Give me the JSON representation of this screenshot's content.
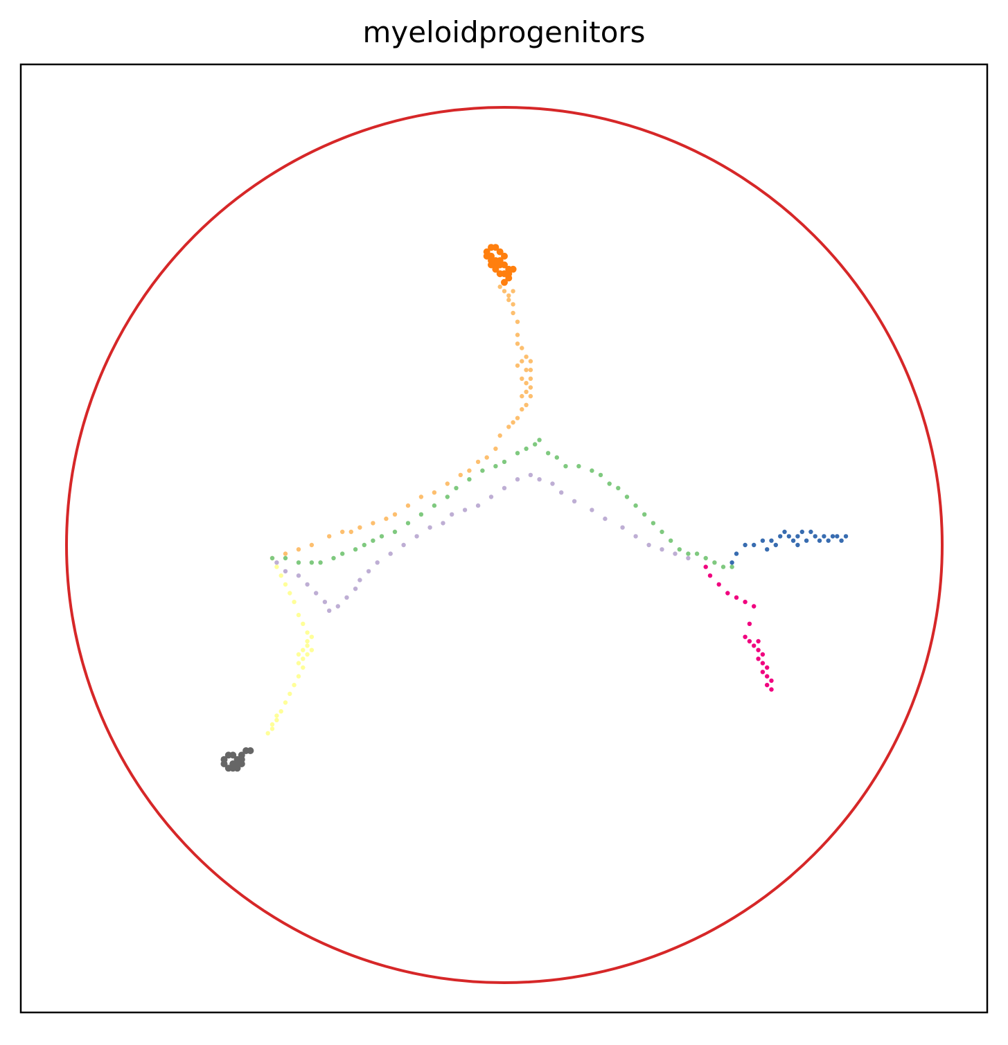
{
  "chart_data": {
    "type": "scatter",
    "title": "myeloidprogenitors",
    "xlabel": "",
    "ylabel": "",
    "xlim": [
      -1.1,
      1.1
    ],
    "ylim": [
      -1.1,
      1.1
    ],
    "grid": false,
    "legend": "none",
    "boundary_circle": {
      "center": [
        0,
        0
      ],
      "radius": 1.0,
      "color": "#d62728"
    },
    "series": [
      {
        "color": "#ff7f0e",
        "shape": "cluster",
        "center": [
          -0.02,
          0.66
        ],
        "points": [
          [
            -0.04,
            0.67
          ],
          [
            -0.03,
            0.68
          ],
          [
            -0.02,
            0.68
          ],
          [
            -0.01,
            0.67
          ],
          [
            -0.04,
            0.66
          ],
          [
            -0.03,
            0.66
          ],
          [
            -0.02,
            0.65
          ],
          [
            -0.01,
            0.65
          ],
          [
            0.0,
            0.64
          ],
          [
            0.01,
            0.63
          ],
          [
            -0.02,
            0.63
          ],
          [
            -0.01,
            0.62
          ],
          [
            0.0,
            0.62
          ],
          [
            0.01,
            0.61
          ],
          [
            -0.03,
            0.65
          ],
          [
            -0.02,
            0.64
          ],
          [
            0.0,
            0.66
          ],
          [
            -0.01,
            0.64
          ],
          [
            0.02,
            0.63
          ],
          [
            0.01,
            0.62
          ],
          [
            -0.03,
            0.64
          ],
          [
            0.0,
            0.6
          ]
        ]
      },
      {
        "color": "#fdbf6f",
        "shape": "path",
        "points": [
          [
            -0.01,
            0.59
          ],
          [
            0.0,
            0.58
          ],
          [
            0.01,
            0.57
          ],
          [
            0.02,
            0.58
          ],
          [
            0.01,
            0.56
          ],
          [
            0.02,
            0.55
          ],
          [
            0.02,
            0.53
          ],
          [
            0.03,
            0.51
          ],
          [
            0.03,
            0.48
          ],
          [
            0.03,
            0.46
          ],
          [
            0.04,
            0.45
          ],
          [
            0.05,
            0.43
          ],
          [
            0.04,
            0.42
          ],
          [
            0.06,
            0.42
          ],
          [
            0.03,
            0.41
          ],
          [
            0.05,
            0.4
          ],
          [
            0.06,
            0.4
          ],
          [
            0.04,
            0.38
          ],
          [
            0.06,
            0.38
          ],
          [
            0.05,
            0.37
          ],
          [
            0.05,
            0.35
          ],
          [
            0.06,
            0.36
          ],
          [
            0.04,
            0.34
          ],
          [
            0.06,
            0.34
          ],
          [
            0.05,
            0.32
          ],
          [
            0.04,
            0.31
          ],
          [
            0.03,
            0.29
          ],
          [
            0.02,
            0.28
          ],
          [
            0.01,
            0.27
          ],
          [
            -0.01,
            0.25
          ],
          [
            -0.02,
            0.22
          ],
          [
            -0.04,
            0.2
          ],
          [
            -0.06,
            0.19
          ],
          [
            -0.08,
            0.17
          ],
          [
            -0.1,
            0.16
          ],
          [
            -0.13,
            0.14
          ],
          [
            -0.16,
            0.12
          ],
          [
            -0.19,
            0.11
          ],
          [
            -0.22,
            0.09
          ],
          [
            -0.25,
            0.07
          ],
          [
            -0.27,
            0.06
          ],
          [
            -0.3,
            0.05
          ],
          [
            -0.33,
            0.04
          ],
          [
            -0.35,
            0.03
          ],
          [
            -0.37,
            0.03
          ],
          [
            -0.4,
            0.02
          ],
          [
            -0.44,
            0.0
          ],
          [
            -0.47,
            -0.01
          ],
          [
            -0.5,
            -0.02
          ],
          [
            -0.53,
            -0.03
          ]
        ]
      },
      {
        "color": "#7fc97f",
        "shape": "path",
        "points": [
          [
            -0.53,
            -0.03
          ],
          [
            -0.5,
            -0.03
          ],
          [
            -0.47,
            -0.04
          ],
          [
            -0.44,
            -0.04
          ],
          [
            -0.42,
            -0.04
          ],
          [
            -0.39,
            -0.03
          ],
          [
            -0.37,
            -0.02
          ],
          [
            -0.34,
            -0.01
          ],
          [
            -0.32,
            0.0
          ],
          [
            -0.3,
            0.01
          ],
          [
            -0.28,
            0.02
          ],
          [
            -0.25,
            0.03
          ],
          [
            -0.22,
            0.05
          ],
          [
            -0.19,
            0.07
          ],
          [
            -0.16,
            0.09
          ],
          [
            -0.13,
            0.11
          ],
          [
            -0.11,
            0.13
          ],
          [
            -0.08,
            0.15
          ],
          [
            -0.05,
            0.17
          ],
          [
            -0.02,
            0.18
          ],
          [
            0.0,
            0.19
          ],
          [
            0.03,
            0.21
          ],
          [
            0.05,
            0.22
          ],
          [
            0.07,
            0.23
          ],
          [
            0.08,
            0.24
          ],
          [
            0.1,
            0.21
          ],
          [
            0.12,
            0.2
          ],
          [
            0.14,
            0.18
          ],
          [
            0.17,
            0.18
          ],
          [
            0.2,
            0.17
          ],
          [
            0.22,
            0.16
          ],
          [
            0.24,
            0.14
          ],
          [
            0.26,
            0.13
          ],
          [
            0.28,
            0.11
          ],
          [
            0.3,
            0.09
          ],
          [
            0.32,
            0.07
          ],
          [
            0.34,
            0.05
          ],
          [
            0.36,
            0.03
          ],
          [
            0.38,
            0.01
          ],
          [
            0.4,
            -0.01
          ],
          [
            0.42,
            -0.02
          ],
          [
            0.44,
            -0.02
          ],
          [
            0.46,
            -0.03
          ],
          [
            0.48,
            -0.04
          ],
          [
            0.5,
            -0.05
          ],
          [
            0.52,
            -0.05
          ]
        ]
      },
      {
        "color": "#beaed4",
        "shape": "path",
        "points": [
          [
            -0.52,
            -0.04
          ],
          [
            -0.5,
            -0.06
          ],
          [
            -0.47,
            -0.07
          ],
          [
            -0.45,
            -0.09
          ],
          [
            -0.43,
            -0.11
          ],
          [
            -0.41,
            -0.13
          ],
          [
            -0.4,
            -0.15
          ],
          [
            -0.38,
            -0.14
          ],
          [
            -0.36,
            -0.12
          ],
          [
            -0.34,
            -0.1
          ],
          [
            -0.33,
            -0.08
          ],
          [
            -0.31,
            -0.06
          ],
          [
            -0.29,
            -0.04
          ],
          [
            -0.26,
            -0.02
          ],
          [
            -0.23,
            0.0
          ],
          [
            -0.2,
            0.02
          ],
          [
            -0.17,
            0.04
          ],
          [
            -0.14,
            0.05
          ],
          [
            -0.12,
            0.07
          ],
          [
            -0.09,
            0.08
          ],
          [
            -0.06,
            0.09
          ],
          [
            -0.03,
            0.11
          ],
          [
            0.0,
            0.13
          ],
          [
            0.03,
            0.15
          ],
          [
            0.06,
            0.16
          ],
          [
            0.08,
            0.15
          ],
          [
            0.11,
            0.14
          ],
          [
            0.13,
            0.12
          ],
          [
            0.16,
            0.1
          ],
          [
            0.2,
            0.08
          ],
          [
            0.23,
            0.06
          ],
          [
            0.27,
            0.04
          ],
          [
            0.3,
            0.02
          ],
          [
            0.33,
            0.0
          ],
          [
            0.36,
            -0.01
          ],
          [
            0.39,
            -0.02
          ],
          [
            0.42,
            -0.03
          ]
        ]
      },
      {
        "color": "#386cb0",
        "shape": "path+cluster",
        "points": [
          [
            0.52,
            -0.04
          ],
          [
            0.53,
            -0.02
          ],
          [
            0.55,
            0.0
          ],
          [
            0.57,
            0.0
          ],
          [
            0.59,
            0.01
          ],
          [
            0.61,
            0.01
          ],
          [
            0.63,
            0.02
          ],
          [
            0.65,
            0.02
          ],
          [
            0.67,
            0.02
          ],
          [
            0.69,
            0.01
          ],
          [
            0.71,
            0.02
          ],
          [
            0.73,
            0.02
          ],
          [
            0.75,
            0.02
          ],
          [
            0.77,
            0.01
          ],
          [
            0.78,
            0.02
          ],
          [
            0.66,
            0.01
          ],
          [
            0.68,
            0.03
          ],
          [
            0.7,
            0.03
          ],
          [
            0.72,
            0.01
          ],
          [
            0.74,
            0.01
          ],
          [
            0.64,
            0.03
          ],
          [
            0.67,
            0.0
          ],
          [
            0.76,
            0.02
          ],
          [
            0.62,
            0.0
          ],
          [
            0.6,
            -0.01
          ]
        ]
      },
      {
        "color": "#f0027f",
        "shape": "path+cluster",
        "points": [
          [
            0.46,
            -0.05
          ],
          [
            0.47,
            -0.07
          ],
          [
            0.49,
            -0.09
          ],
          [
            0.51,
            -0.11
          ],
          [
            0.53,
            -0.12
          ],
          [
            0.55,
            -0.13
          ],
          [
            0.57,
            -0.14
          ],
          [
            0.56,
            -0.18
          ],
          [
            0.55,
            -0.21
          ],
          [
            0.56,
            -0.22
          ],
          [
            0.57,
            -0.23
          ],
          [
            0.58,
            -0.22
          ],
          [
            0.58,
            -0.24
          ],
          [
            0.59,
            -0.25
          ],
          [
            0.58,
            -0.26
          ],
          [
            0.59,
            -0.27
          ],
          [
            0.6,
            -0.28
          ],
          [
            0.59,
            -0.29
          ],
          [
            0.6,
            -0.3
          ],
          [
            0.61,
            -0.31
          ],
          [
            0.6,
            -0.32
          ],
          [
            0.61,
            -0.33
          ]
        ]
      },
      {
        "color": "#ffff99",
        "shape": "path+cluster",
        "points": [
          [
            -0.52,
            -0.05
          ],
          [
            -0.51,
            -0.07
          ],
          [
            -0.5,
            -0.09
          ],
          [
            -0.49,
            -0.11
          ],
          [
            -0.48,
            -0.13
          ],
          [
            -0.47,
            -0.16
          ],
          [
            -0.46,
            -0.18
          ],
          [
            -0.45,
            -0.2
          ],
          [
            -0.44,
            -0.21
          ],
          [
            -0.45,
            -0.23
          ],
          [
            -0.46,
            -0.24
          ],
          [
            -0.45,
            -0.25
          ],
          [
            -0.46,
            -0.26
          ],
          [
            -0.47,
            -0.27
          ],
          [
            -0.46,
            -0.28
          ],
          [
            -0.47,
            -0.3
          ],
          [
            -0.48,
            -0.32
          ],
          [
            -0.49,
            -0.34
          ],
          [
            -0.5,
            -0.36
          ],
          [
            -0.51,
            -0.38
          ],
          [
            -0.52,
            -0.4
          ],
          [
            -0.53,
            -0.42
          ],
          [
            -0.54,
            -0.43
          ],
          [
            -0.53,
            -0.41
          ],
          [
            -0.52,
            -0.39
          ],
          [
            -0.44,
            -0.24
          ],
          [
            -0.45,
            -0.22
          ],
          [
            -0.47,
            -0.25
          ]
        ]
      },
      {
        "color": "#666666",
        "shape": "cluster",
        "center": [
          -0.62,
          -0.5
        ],
        "points": [
          [
            -0.64,
            -0.49
          ],
          [
            -0.63,
            -0.48
          ],
          [
            -0.62,
            -0.48
          ],
          [
            -0.61,
            -0.49
          ],
          [
            -0.6,
            -0.5
          ],
          [
            -0.61,
            -0.51
          ],
          [
            -0.62,
            -0.51
          ],
          [
            -0.63,
            -0.51
          ],
          [
            -0.64,
            -0.5
          ],
          [
            -0.6,
            -0.48
          ],
          [
            -0.59,
            -0.47
          ],
          [
            -0.58,
            -0.47
          ],
          [
            -0.62,
            -0.5
          ],
          [
            -0.61,
            -0.5
          ],
          [
            -0.6,
            -0.49
          ]
        ]
      }
    ]
  }
}
